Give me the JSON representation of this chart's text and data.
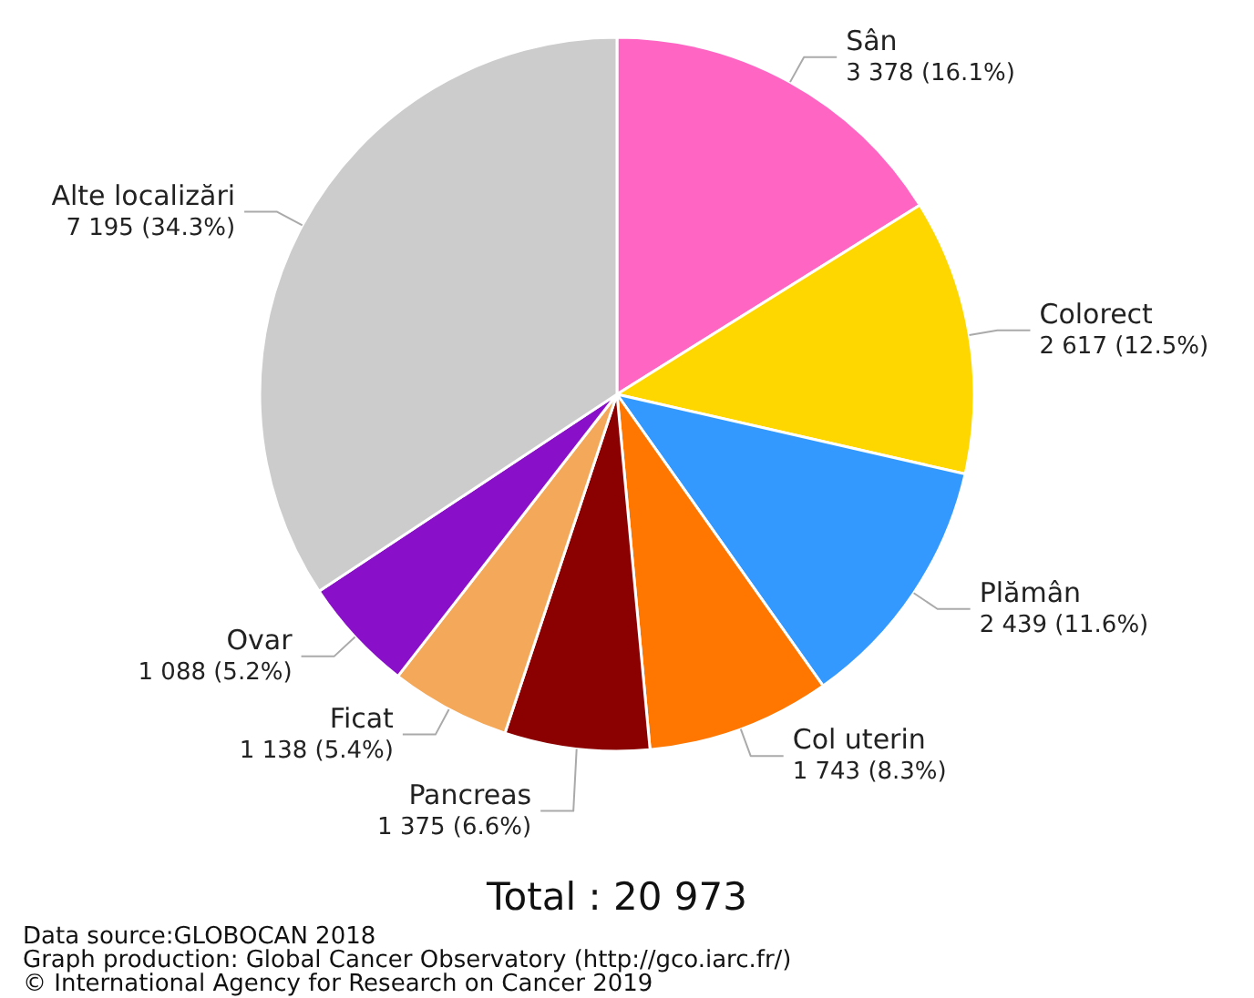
{
  "chart_data": {
    "type": "pie",
    "categories": [
      "Sân",
      "Colorect",
      "Plămân",
      "Col uterin",
      "Pancreas",
      "Ficat",
      "Ovar",
      "Alte localizări"
    ],
    "values": [
      3378,
      2617,
      2439,
      1743,
      1375,
      1138,
      1088,
      7195
    ],
    "value_labels": [
      "3 378 (16.1%)",
      "2 617 (12.5%)",
      "2 439 (11.6%)",
      "1 743 (8.3%)",
      "1 375 (6.6%)",
      "1 138 (5.4%)",
      "1 088 (5.2%)",
      "7 195 (34.3%)"
    ],
    "colors": [
      "#ff66c4",
      "#ffd700",
      "#3399ff",
      "#ff7700",
      "#8b0000",
      "#f4a95a",
      "#8a0fc8",
      "#cccccc"
    ],
    "annotations": [
      "Total : 20 973",
      "Data source:GLOBOCAN 2018",
      "Graph production: Global Cancer Observatory (http://gco.iarc.fr/)",
      "© International Agency for Research on Cancer 2019"
    ]
  }
}
